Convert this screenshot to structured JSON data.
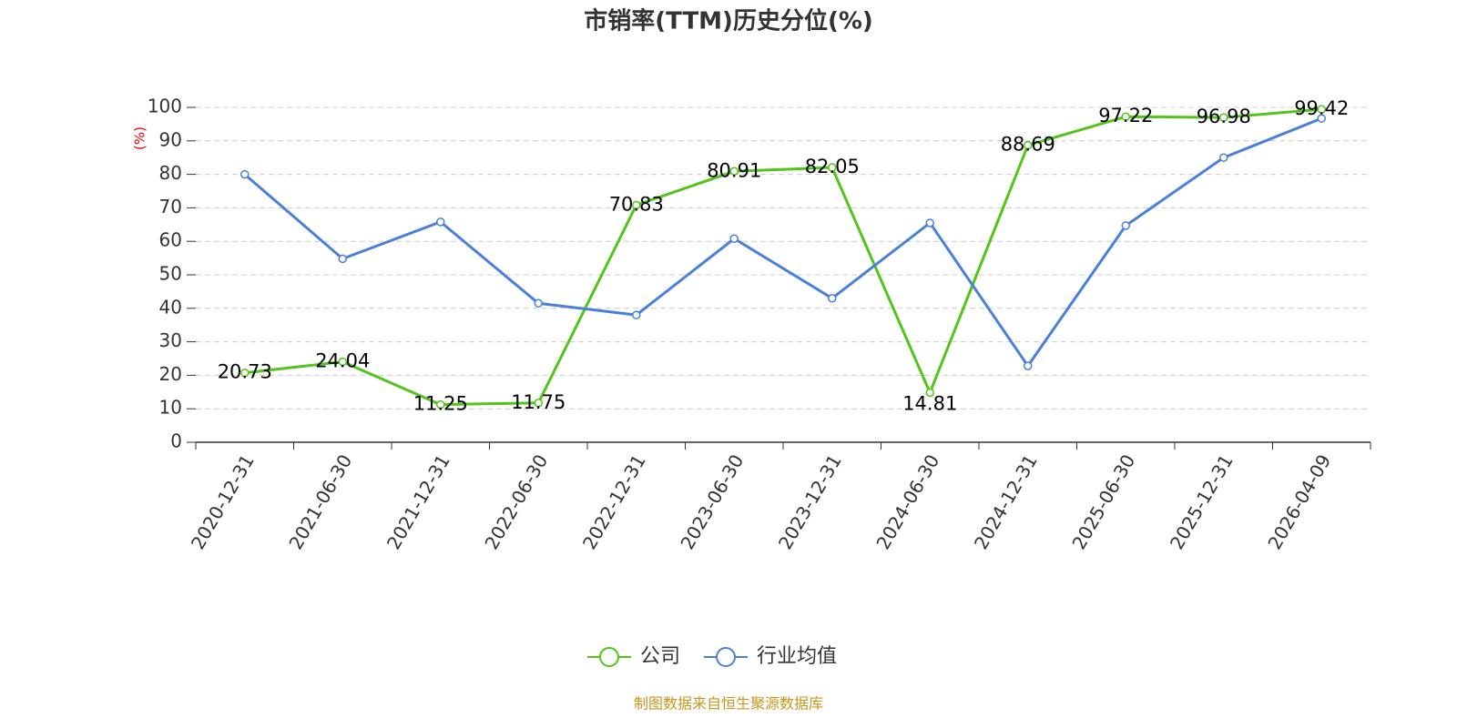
{
  "chart_data": {
    "type": "line",
    "title": "市销率(TTM)历史分位(%)",
    "y_label": "(%)",
    "categories": [
      "2020-12-31",
      "2021-06-30",
      "2021-12-31",
      "2022-06-30",
      "2022-12-31",
      "2023-06-30",
      "2023-12-31",
      "2024-06-30",
      "2024-12-31",
      "2025-06-30",
      "2025-12-31",
      "2026-04-09"
    ],
    "series": [
      {
        "name": "公司",
        "color": "#52c41a",
        "show_labels": true,
        "values": [
          20.73,
          24.04,
          11.25,
          11.75,
          70.83,
          80.91,
          82.05,
          14.81,
          88.69,
          97.22,
          96.98,
          99.42
        ]
      },
      {
        "name": "行业均值",
        "color": "#4a7fdb",
        "show_labels": false,
        "values": [
          80,
          54.8,
          65.8,
          41.5,
          38,
          60.8,
          43,
          65.5,
          22.8,
          64.7,
          85,
          96.7
        ]
      }
    ],
    "ylim": [
      0,
      100
    ],
    "yticks": [
      0,
      10,
      20,
      30,
      40,
      50,
      60,
      70,
      80,
      90,
      100
    ],
    "grid": true,
    "legend": "bottom",
    "source": "制图数据来自恒生聚源数据库"
  }
}
